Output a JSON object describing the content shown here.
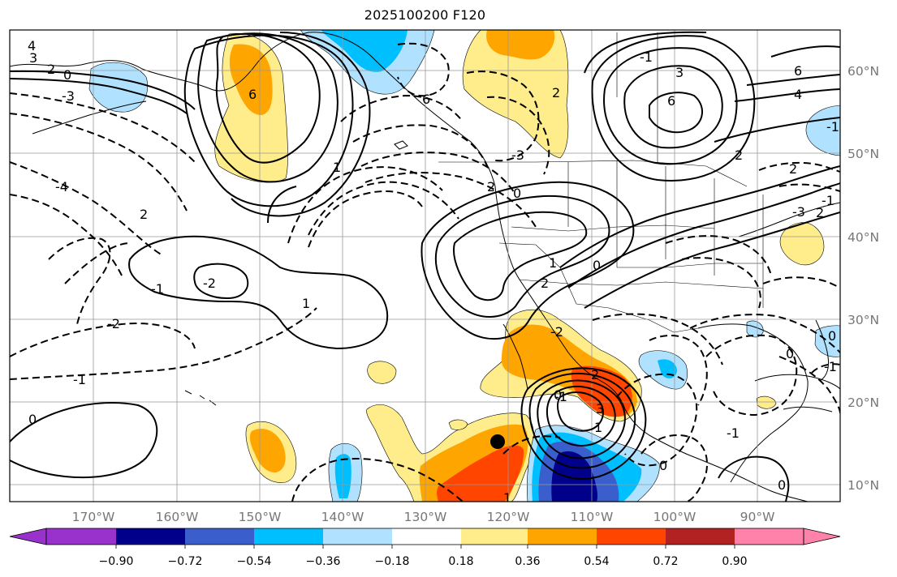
{
  "title": "2025100200 F120",
  "map": {
    "region": "Eastern North Pacific / North America",
    "longitude_labels": [
      "170°W",
      "160°W",
      "150°W",
      "140°W",
      "130°W",
      "120°W",
      "110°W",
      "100°W",
      "90°W"
    ],
    "latitude_labels": [
      "60°N",
      "50°N",
      "40°N",
      "30°N",
      "20°N",
      "10°N"
    ],
    "gridlines": true,
    "storm_marker": {
      "icon": "filled-black-circle",
      "lon": -120.8,
      "lat": 14.8
    }
  },
  "contours": {
    "style": "solid = positive, dashed = negative",
    "labels": [
      "4",
      "3",
      "2",
      "0",
      "-3",
      "-4",
      "2",
      "6",
      "-1",
      "-2",
      "6",
      "-3",
      "1",
      "1",
      "2",
      "-2",
      "2",
      "0",
      "-1",
      "3",
      "6",
      "4",
      "6",
      "2",
      "0",
      "2",
      "-1",
      "-3",
      "1",
      "2",
      "-1",
      "-1",
      "1",
      "2",
      "-1",
      "-2",
      "0",
      "0",
      "3",
      "0",
      "-1",
      "2",
      "0",
      "-1",
      "0",
      "0",
      "1"
    ]
  },
  "colorbar": {
    "tick_labels": [
      "−0.90",
      "−0.72",
      "−0.54",
      "−0.36",
      "−0.18",
      "0.18",
      "0.36",
      "0.54",
      "0.72",
      "0.90"
    ],
    "colors": [
      "#9932cc",
      "#00008b",
      "#3a5fcd",
      "#00bfff",
      "#b0e2ff",
      "#ffffff",
      "#ffec8b",
      "#ffa500",
      "#ff4500",
      "#b22222",
      "#ff82ab"
    ],
    "extend": "both"
  }
}
